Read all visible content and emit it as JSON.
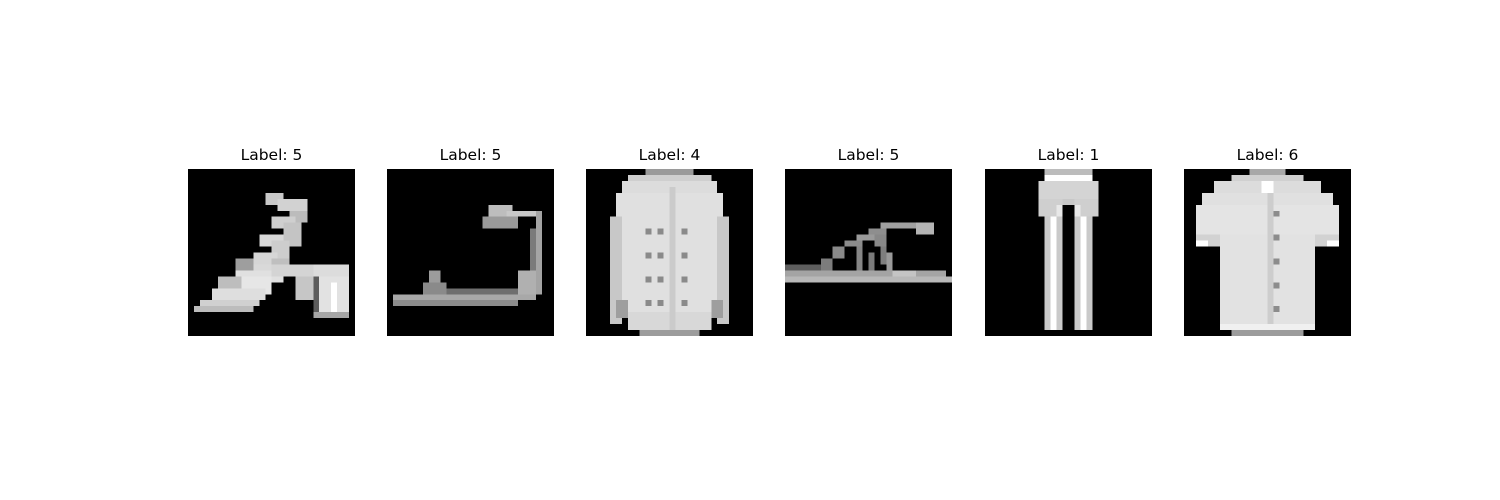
{
  "figure": {
    "panels": [
      {
        "title": "Label: 5",
        "item": "high-heel-sandal"
      },
      {
        "title": "Label: 5",
        "item": "flat-sandal"
      },
      {
        "title": "Label: 4",
        "item": "coat"
      },
      {
        "title": "Label: 5",
        "item": "strappy-sandal"
      },
      {
        "title": "Label: 1",
        "item": "trouser"
      },
      {
        "title": "Label: 6",
        "item": "shirt"
      }
    ]
  }
}
